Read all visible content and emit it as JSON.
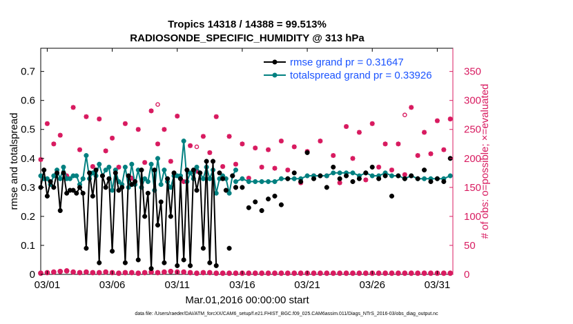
{
  "colors": {
    "rmse": "#000000",
    "spread": "#008080",
    "obs": "#d81b60",
    "legend_text": "#1a53ff"
  },
  "chart_data": {
    "type": "line",
    "title": "Tropics 14318 / 14388 = 99.513%",
    "subtitle": "RADIOSONDE_SPECIFIC_HUMIDITY @ 313 hPa",
    "xlabel": "Mar.01,2016 00:00:00 start",
    "ylabel_left": "rmse and totalspread",
    "ylabel_right": "# of obs: o=possible; ×=evaluated",
    "footer": "data file: /Users/raeder/DAI/ATM_forcXX/CAM6_setup/f.e21.FHIST_BGC.f09_025.CAM6assim.011/Diags_NTrS_2016-03/obs_diag_output.nc",
    "xlim": [
      0.5,
      32.2
    ],
    "ylim_left": [
      0,
      0.78
    ],
    "ylim_right": [
      0,
      390
    ],
    "x_ticks": [
      1,
      6,
      11,
      16,
      21,
      26,
      31
    ],
    "x_tick_labels": [
      "03/01",
      "03/06",
      "03/11",
      "03/16",
      "03/21",
      "03/26",
      "03/31"
    ],
    "y_ticks_left": [
      0,
      0.1,
      0.2,
      0.3,
      0.4,
      0.5,
      0.6,
      0.7
    ],
    "y_tick_labels_left": [
      "0",
      "0.1",
      "0.2",
      "0.3",
      "0.4",
      "0.5",
      "0.6",
      "0.7"
    ],
    "y_ticks_right": [
      0,
      50,
      100,
      150,
      200,
      250,
      300,
      350
    ],
    "y_tick_labels_right": [
      "0",
      "50",
      "100",
      "150",
      "200",
      "250",
      "300",
      "350"
    ],
    "legend": [
      {
        "name": "rmse grand pr = 0.31647",
        "series": "rmse"
      },
      {
        "name": "totalspread grand pr = 0.33926",
        "series": "spread"
      }
    ],
    "legend_position": "top-right",
    "series": [
      {
        "name": "rmse",
        "x": [
          0.5,
          0.75,
          1.0,
          1.25,
          1.5,
          1.75,
          2.0,
          2.25,
          2.5,
          2.75,
          3.0,
          3.25,
          3.5,
          3.75,
          4.0,
          4.25,
          4.5,
          4.75,
          5.0,
          5.25,
          5.5,
          5.75,
          6.0,
          6.25,
          6.5,
          6.75,
          7.0,
          7.25,
          7.5,
          7.75,
          8.0,
          8.25,
          8.5,
          8.75,
          9.0,
          9.25,
          9.5,
          9.75,
          10.0,
          10.25,
          10.5,
          10.75,
          11.0,
          11.25,
          11.5,
          11.75,
          12.0,
          12.25,
          12.5,
          12.75,
          13.0,
          13.25,
          13.5,
          13.75,
          14.0,
          14.25,
          14.5,
          14.75,
          15.0,
          15.25,
          15.5
        ],
        "values": [
          0.3,
          0.36,
          0.27,
          0.32,
          0.3,
          0.35,
          0.22,
          0.35,
          0.28,
          0.29,
          0.29,
          0.28,
          0.3,
          0.28,
          0.09,
          0.35,
          0.27,
          0.36,
          0.04,
          0.34,
          0.3,
          0.33,
          0.08,
          0.35,
          0.29,
          0.3,
          0.04,
          0.34,
          0.31,
          0.32,
          0.05,
          0.36,
          0.2,
          0.28,
          0.02,
          0.36,
          0.17,
          0.25,
          0.04,
          0.33,
          0.2,
          0.35,
          0.03,
          0.33,
          0.05,
          0.36,
          0.03,
          0.36,
          0.29,
          0.35,
          0.09,
          0.39,
          0.04,
          0.39,
          0.03,
          0.35,
          0.33,
          0.29,
          0.09,
          0.34,
          0.3
        ],
        "connected_until": 14.0
      },
      {
        "name": "rmse_isolated",
        "x": [
          15.5,
          16.0,
          16.5,
          17.0,
          17.5,
          18.0,
          18.5,
          19.0,
          19.5,
          20.0,
          20.5,
          21.0,
          21.5,
          22.0,
          22.5,
          23.0,
          23.5,
          24.0,
          24.5,
          25.0,
          25.5,
          26.0,
          26.5,
          27.0,
          27.5,
          28.0,
          28.5,
          29.0,
          29.5,
          30.0,
          30.5,
          31.0,
          31.5,
          32.0
        ],
        "values": [
          0.3,
          0.3,
          0.23,
          0.25,
          0.22,
          0.26,
          0.27,
          0.24,
          0.33,
          0.35,
          0.32,
          0.42,
          0.33,
          0.34,
          0.3,
          0.37,
          0.33,
          0.34,
          0.32,
          0.33,
          0.35,
          0.37,
          0.33,
          0.34,
          0.27,
          0.34,
          0.33,
          0.34,
          0.33,
          0.36,
          0.32,
          0.33,
          0.32,
          0.4
        ]
      },
      {
        "name": "totalspread",
        "x": [
          0.5,
          0.75,
          1.0,
          1.25,
          1.5,
          1.75,
          2.0,
          2.25,
          2.5,
          2.75,
          3.0,
          3.25,
          3.5,
          3.75,
          4.0,
          4.25,
          4.5,
          4.75,
          5.0,
          5.25,
          5.5,
          5.75,
          6.0,
          6.25,
          6.5,
          6.75,
          7.0,
          7.25,
          7.5,
          7.75,
          8.0,
          8.25,
          8.5,
          8.75,
          9.0,
          9.25,
          9.5,
          9.75,
          10.0,
          10.25,
          10.5,
          10.75,
          11.0,
          11.25,
          11.5,
          11.75,
          12.0,
          12.25,
          12.5,
          12.75,
          13.0,
          13.25,
          13.5,
          13.75,
          14.0,
          14.25,
          14.5,
          14.75,
          15.0,
          15.25,
          15.5
        ],
        "values": [
          0.34,
          0.33,
          0.33,
          0.31,
          0.34,
          0.36,
          0.33,
          0.37,
          0.33,
          0.33,
          0.34,
          0.34,
          0.31,
          0.33,
          0.41,
          0.33,
          0.35,
          0.34,
          0.38,
          0.34,
          0.36,
          0.37,
          0.29,
          0.36,
          0.32,
          0.31,
          0.37,
          0.3,
          0.38,
          0.31,
          0.36,
          0.3,
          0.33,
          0.32,
          0.38,
          0.29,
          0.4,
          0.31,
          0.36,
          0.32,
          0.3,
          0.34,
          0.34,
          0.34,
          0.46,
          0.32,
          0.35,
          0.33,
          0.37,
          0.35,
          0.33,
          0.37,
          0.33,
          0.36,
          0.28,
          0.33,
          0.34,
          0.33,
          0.28,
          0.34,
          0.36
        ],
        "connected_until": 15.5
      },
      {
        "name": "totalspread_tail",
        "x": [
          15.5,
          16.0,
          16.5,
          17.0,
          17.5,
          18.0,
          18.5,
          19.0,
          19.5,
          20.0,
          20.5,
          21.0,
          21.5,
          22.0,
          22.5,
          23.0,
          23.5,
          24.0,
          24.5,
          25.0,
          25.5,
          26.0,
          26.5,
          27.0,
          27.5,
          28.0,
          28.5,
          29.0,
          29.5,
          30.0,
          30.5,
          31.0,
          31.5,
          32.0
        ],
        "values": [
          0.32,
          0.33,
          0.32,
          0.32,
          0.32,
          0.32,
          0.32,
          0.33,
          0.33,
          0.33,
          0.33,
          0.34,
          0.34,
          0.34,
          0.34,
          0.35,
          0.35,
          0.35,
          0.35,
          0.34,
          0.35,
          0.34,
          0.34,
          0.35,
          0.34,
          0.34,
          0.33,
          0.34,
          0.33,
          0.33,
          0.33,
          0.33,
          0.33,
          0.34
        ]
      },
      {
        "name": "obs_possible",
        "axis": "right",
        "x": [
          0.5,
          1.0,
          1.5,
          2.0,
          2.5,
          3.0,
          3.5,
          4.0,
          4.5,
          5.0,
          5.5,
          6.0,
          6.5,
          7.0,
          7.5,
          8.0,
          8.5,
          9.0,
          9.5,
          10.0,
          10.5,
          11.0,
          11.5,
          12.0,
          12.5,
          13.0,
          13.5,
          14.0,
          14.5,
          15.0,
          15.5,
          16.0,
          16.5,
          17.0,
          17.5,
          18.0,
          18.5,
          19.0,
          19.5,
          20.0,
          20.5,
          21.0,
          21.5,
          22.0,
          22.5,
          23.0,
          23.5,
          24.0,
          24.5,
          25.0,
          25.5,
          26.0,
          26.5,
          27.0,
          27.5,
          28.0,
          28.5,
          29.0,
          29.5,
          30.0,
          30.5,
          31.0,
          31.5,
          32.0
        ],
        "values": [
          198,
          260,
          225,
          240,
          170,
          288,
          215,
          272,
          186,
          268,
          213,
          235,
          185,
          260,
          166,
          250,
          193,
          282,
          225,
          250,
          195,
          273,
          160,
          222,
          178,
          238,
          210,
          272,
          186,
          238,
          190,
          225,
          166,
          218,
          185,
          215,
          183,
          230,
          180,
          220,
          158,
          212,
          170,
          230,
          170,
          205,
          158,
          255,
          200,
          245,
          163,
          260,
          185,
          225,
          180,
          225,
          172,
          288,
          205,
          245,
          208,
          265,
          215,
          268
        ]
      },
      {
        "name": "obs_evaluated",
        "axis": "right",
        "x": [
          0.5,
          1.0,
          1.5,
          2.0,
          2.5,
          3.0,
          3.5,
          4.0,
          4.5,
          5.0,
          5.5,
          6.0,
          6.5,
          7.0,
          7.5,
          8.0,
          8.5,
          9.0,
          9.5,
          10.0,
          10.5,
          11.0,
          11.5,
          12.0,
          12.5,
          13.0,
          13.5,
          14.0,
          14.5,
          15.0,
          15.5,
          16.0,
          16.5,
          17.0,
          17.5,
          18.0,
          18.5,
          19.0,
          19.5,
          20.0,
          20.5,
          21.0,
          21.5,
          22.0,
          22.5,
          23.0,
          23.5,
          24.0,
          24.5,
          25.0,
          25.5,
          26.0,
          26.5,
          27.0,
          27.5,
          28.0,
          28.5,
          29.0,
          29.5,
          30.0,
          30.5,
          31.0,
          31.5,
          32.0
        ],
        "values": [
          198,
          260,
          225,
          240,
          170,
          288,
          215,
          272,
          186,
          268,
          213,
          235,
          185,
          260,
          166,
          250,
          193,
          282,
          225,
          250,
          195,
          273,
          160,
          222,
          178,
          238,
          210,
          272,
          186,
          238,
          190,
          225,
          166,
          218,
          185,
          215,
          183,
          230,
          180,
          220,
          158,
          212,
          170,
          230,
          170,
          205,
          158,
          255,
          200,
          245,
          163,
          260,
          185,
          225,
          180,
          225,
          172,
          288,
          205,
          245,
          208,
          265,
          215,
          268
        ]
      },
      {
        "name": "obs_possible_top",
        "axis": "right",
        "x": [
          9.5,
          12.5,
          28.5
        ],
        "values": [
          293,
          220,
          275
        ]
      },
      {
        "name": "obs_bottom",
        "axis": "right",
        "x": [
          0.5,
          1.0,
          1.5,
          2.0,
          2.5,
          3.0,
          3.5,
          4.0,
          4.5,
          5.0,
          5.5,
          6.0,
          6.5,
          7.0,
          7.5,
          8.0,
          8.5,
          9.0,
          9.5,
          10.0,
          10.5,
          11.0,
          11.5,
          12.0,
          12.5,
          13.0,
          13.5,
          14.0,
          14.5,
          15.0,
          15.5,
          16.0,
          16.5,
          17.0,
          17.5,
          18.0,
          18.5,
          19.0,
          19.5,
          20.0,
          20.5,
          21.0,
          21.5,
          22.0,
          22.5,
          23.0,
          23.5,
          24.0,
          24.5,
          25.0,
          25.5,
          26.0,
          26.5,
          27.0,
          27.5,
          28.0,
          28.5,
          29.0,
          29.5,
          30.0,
          30.5,
          31.0,
          31.5,
          32.0
        ],
        "values": [
          2,
          3,
          4,
          5,
          6,
          4,
          3,
          4,
          3,
          3,
          4,
          3,
          2,
          3,
          3,
          2,
          3,
          4,
          3,
          4,
          5,
          4,
          4,
          3,
          2,
          3,
          3,
          2,
          2,
          2,
          2,
          2,
          2,
          2,
          2,
          2,
          2,
          2,
          2,
          2,
          2,
          2,
          2,
          2,
          2,
          2,
          2,
          2,
          2,
          2,
          2,
          2,
          2,
          2,
          2,
          2,
          2,
          2,
          2,
          2,
          2,
          2,
          2,
          2
        ]
      }
    ]
  }
}
